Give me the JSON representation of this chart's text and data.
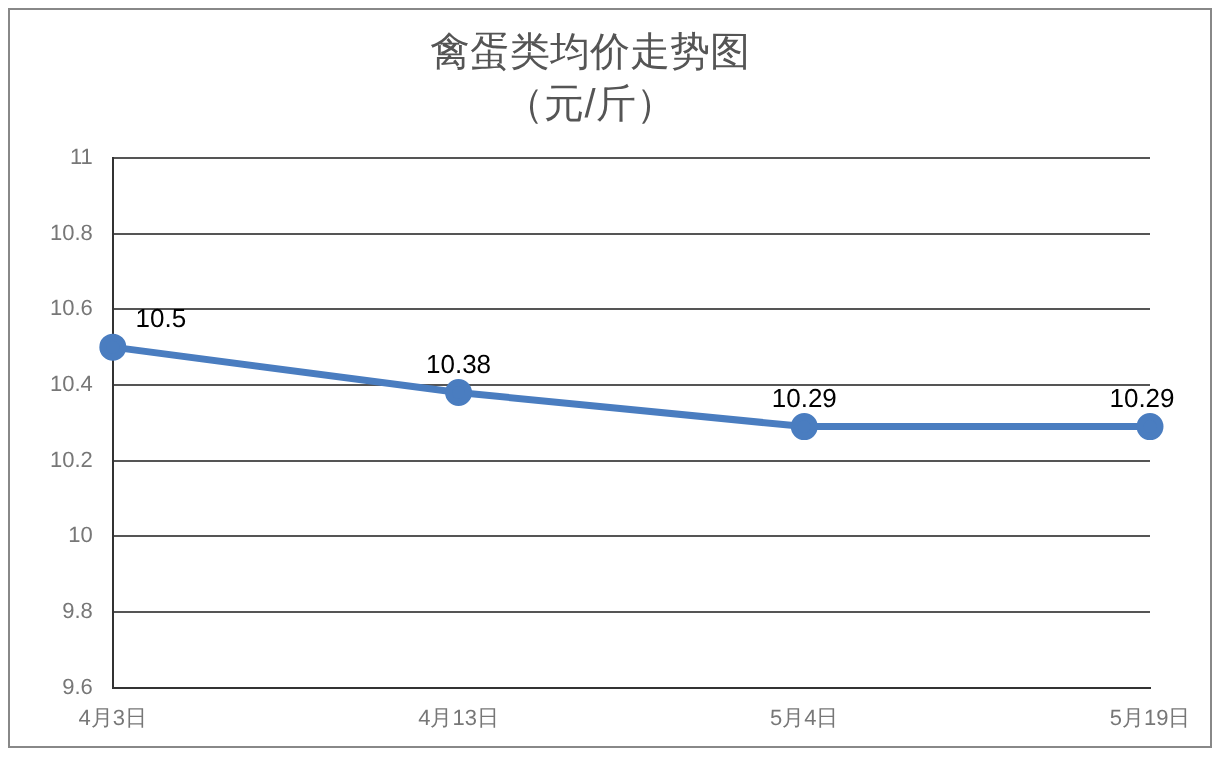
{
  "chart_data": {
    "type": "line",
    "title": "禽蛋类均价走势图",
    "subtitle": "（元/斤）",
    "categories": [
      "4月3日",
      "4月13日",
      "5月4日",
      "5月19日"
    ],
    "series": [
      {
        "color": "#4a7dc0",
        "values": [
          10.5,
          10.38,
          10.29,
          10.29
        ]
      }
    ],
    "ylim": [
      9.6,
      11
    ],
    "yticks": [
      9.6,
      9.8,
      10,
      10.2,
      10.4,
      10.6,
      10.8,
      11
    ],
    "grid": "y",
    "legend": false,
    "marker": "circle",
    "line_style": "solid",
    "data_labels": true
  }
}
